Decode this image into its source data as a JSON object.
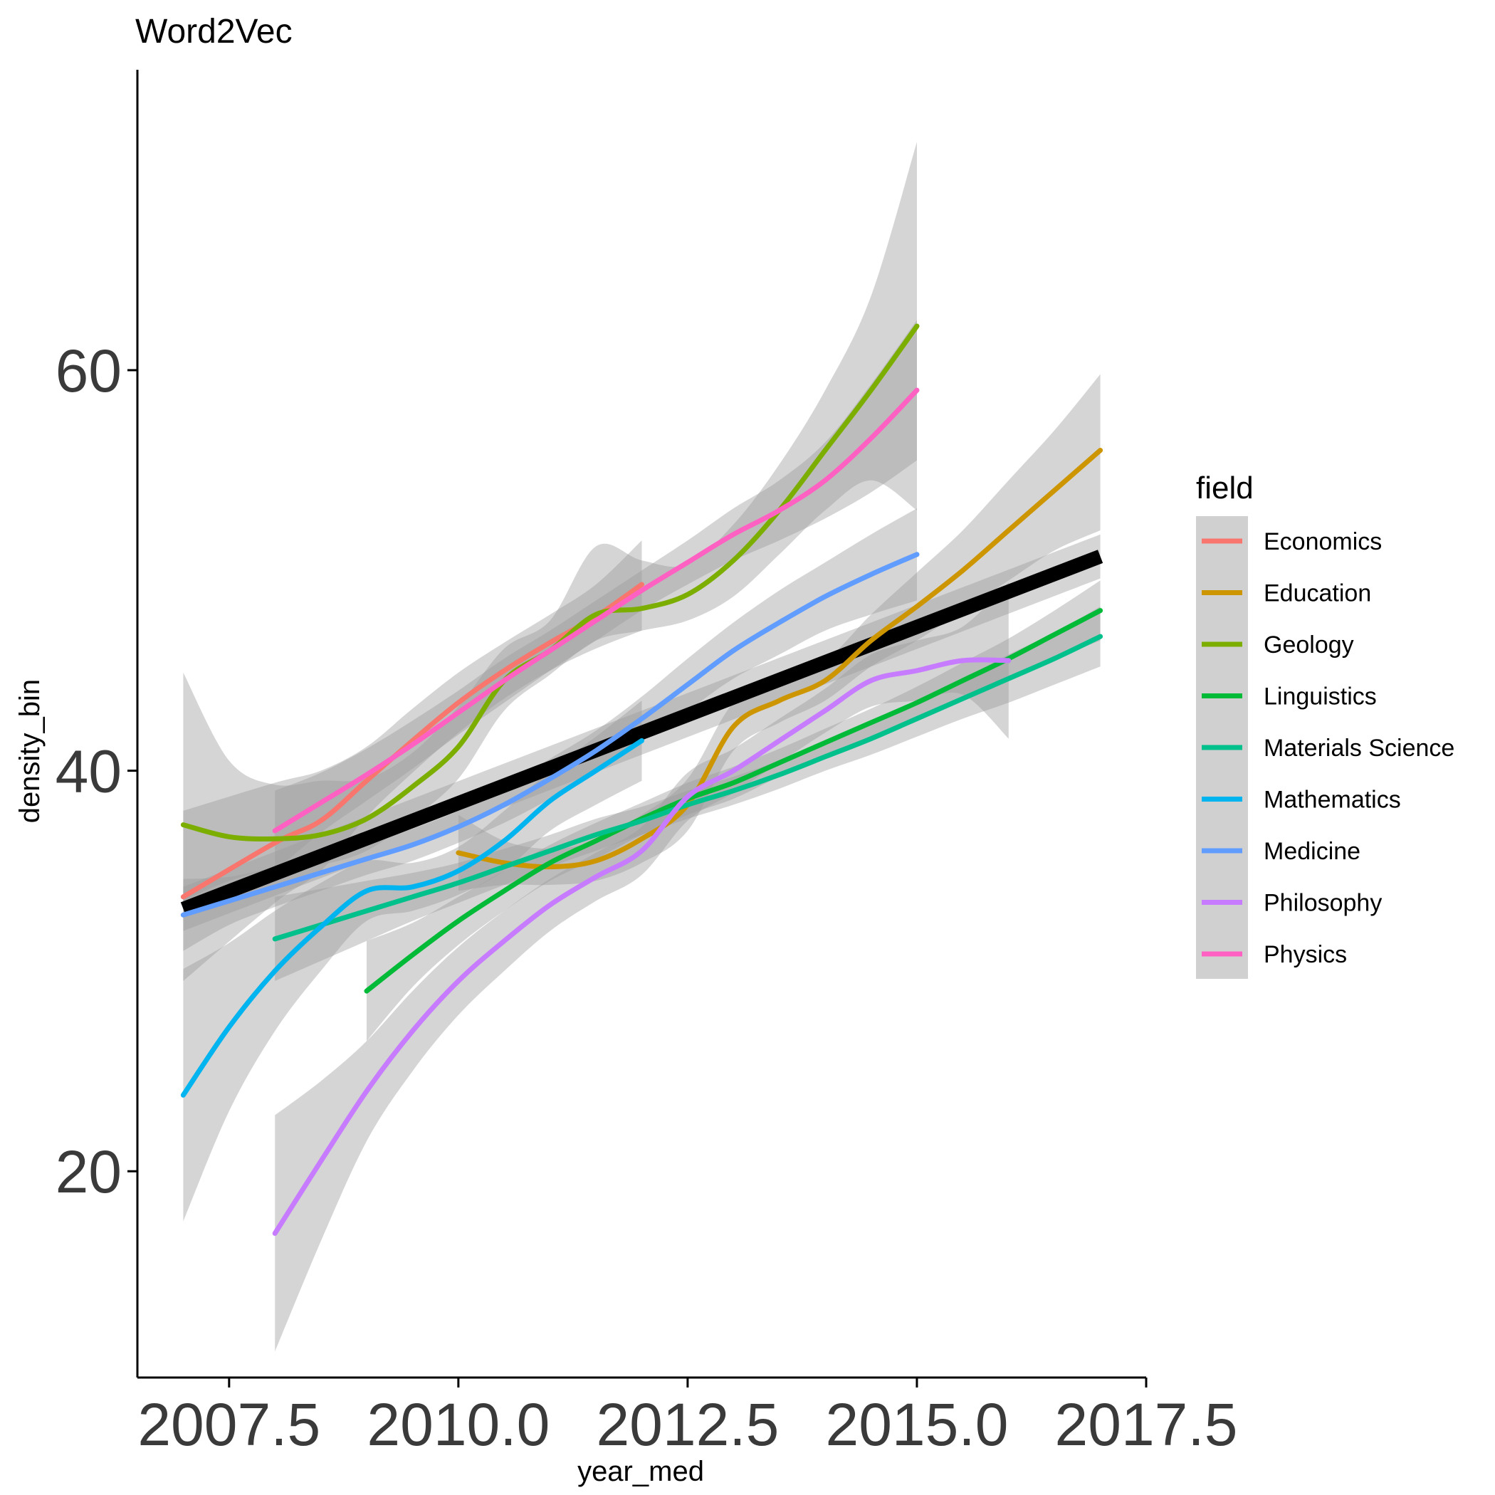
{
  "chart_data": {
    "type": "line",
    "title": "Word2Vec",
    "xlabel": "year_med",
    "ylabel": "density_bin",
    "xlim": [
      2006.5,
      2017.5
    ],
    "ylim": [
      9.7,
      75
    ],
    "x_ticks": [
      "2007.5",
      "2010.0",
      "2012.5",
      "2015.0",
      "2017.5"
    ],
    "x_tick_values": [
      2007.5,
      2010.0,
      2012.5,
      2015.0,
      2017.5
    ],
    "y_ticks": [
      "20",
      "40",
      "60"
    ],
    "y_tick_values": [
      20,
      40,
      60
    ],
    "grid": false,
    "legend": {
      "title": "field",
      "position": "right"
    },
    "series": [
      {
        "name": "Economics",
        "color": "#F8766D",
        "x": [
          2007,
          2008,
          2008.5,
          2009,
          2009.5,
          2010,
          2010.5,
          2011,
          2011.5,
          2012
        ],
        "y": [
          33.7,
          36.4,
          37.5,
          39.5,
          41.5,
          43.4,
          45.0,
          46.4,
          47.7,
          49.3
        ],
        "ci": [
          [
            29.5,
            38.0
          ],
          [
            33.4,
            39.4
          ],
          [
            35.0,
            40.0
          ],
          [
            37.7,
            41.2
          ],
          [
            39.9,
            43.1
          ],
          [
            41.9,
            44.9
          ],
          [
            43.6,
            46.4
          ],
          [
            45.0,
            47.8
          ],
          [
            46.1,
            49.3
          ],
          [
            47.0,
            51.5
          ]
        ]
      },
      {
        "name": "Education",
        "color": "#CD9600",
        "x": [
          2010,
          2010.5,
          2011,
          2011.5,
          2012,
          2012.5,
          2013,
          2013.5,
          2014,
          2014.5,
          2015,
          2015.5,
          2016,
          2016.5,
          2017
        ],
        "y": [
          35.9,
          35.4,
          35.2,
          35.5,
          36.6,
          38.3,
          42.2,
          43.5,
          44.5,
          46.5,
          48.2,
          50.0,
          52.0,
          54.0,
          56.0
        ],
        "ci": [
          [
            34.0,
            37.8
          ],
          [
            34.3,
            36.5
          ],
          [
            34.3,
            36.1
          ],
          [
            34.5,
            36.5
          ],
          [
            35.4,
            37.8
          ],
          [
            37.0,
            39.6
          ],
          [
            41.0,
            43.4
          ],
          [
            42.4,
            44.6
          ],
          [
            43.5,
            45.5
          ],
          [
            45.2,
            47.8
          ],
          [
            46.5,
            49.9
          ],
          [
            48.0,
            52.0
          ],
          [
            49.5,
            54.5
          ],
          [
            51.0,
            57.0
          ],
          [
            52.0,
            59.8
          ]
        ]
      },
      {
        "name": "Geology",
        "color": "#7CAE00",
        "x": [
          2007,
          2007.5,
          2008,
          2008.5,
          2009,
          2009.5,
          2010,
          2010.5,
          2011,
          2011.5,
          2012,
          2012.5,
          2013,
          2013.5,
          2014,
          2014.5,
          2015
        ],
        "y": [
          37.3,
          36.7,
          36.6,
          36.8,
          37.6,
          39.2,
          41.2,
          44.5,
          46.0,
          47.8,
          48.1,
          48.8,
          50.5,
          53.0,
          56.0,
          59.0,
          62.2
        ],
        "ci": [
          [
            33.5,
            44.9
          ],
          [
            34.5,
            40.5
          ],
          [
            35.1,
            39.3
          ],
          [
            35.3,
            39.5
          ],
          [
            36.0,
            39.6
          ],
          [
            37.6,
            40.9
          ],
          [
            39.6,
            43.2
          ],
          [
            43.0,
            46.1
          ],
          [
            44.8,
            47.5
          ],
          [
            46.5,
            51.2
          ],
          [
            47.0,
            50.5
          ],
          [
            47.5,
            50.3
          ],
          [
            48.7,
            52.3
          ],
          [
            50.8,
            55.3
          ],
          [
            53.0,
            59.0
          ],
          [
            54.5,
            63.7
          ],
          [
            53.0,
            71.4
          ]
        ]
      },
      {
        "name": "Linguistics",
        "color": "#00BA38",
        "x": [
          2009,
          2009.5,
          2010,
          2010.5,
          2011,
          2011.5,
          2012,
          2012.5,
          2013,
          2013.5,
          2014,
          2014.5,
          2015,
          2015.5,
          2016,
          2016.5,
          2017
        ],
        "y": [
          29.0,
          30.8,
          32.5,
          34.0,
          35.4,
          36.5,
          37.6,
          38.6,
          39.4,
          40.4,
          41.4,
          42.4,
          43.4,
          44.5,
          45.6,
          46.8,
          48.0
        ],
        "ci": [
          [
            26.5,
            31.5
          ],
          [
            29.2,
            32.4
          ],
          [
            31.3,
            33.7
          ],
          [
            33.0,
            35.0
          ],
          [
            34.5,
            36.3
          ],
          [
            35.6,
            37.4
          ],
          [
            36.8,
            38.4
          ],
          [
            37.8,
            39.4
          ],
          [
            38.6,
            40.2
          ],
          [
            39.7,
            41.1
          ],
          [
            40.7,
            42.1
          ],
          [
            41.7,
            43.1
          ],
          [
            42.6,
            44.2
          ],
          [
            43.6,
            45.4
          ],
          [
            44.6,
            46.6
          ],
          [
            45.6,
            48.0
          ],
          [
            46.5,
            49.5
          ]
        ]
      },
      {
        "name": "Materials Science",
        "color": "#00C08B",
        "x": [
          2008,
          2008.5,
          2009,
          2009.5,
          2010,
          2010.5,
          2011,
          2011.5,
          2012,
          2012.5,
          2013,
          2013.5,
          2014,
          2014.5,
          2015,
          2015.5,
          2016,
          2016.5,
          2017
        ],
        "y": [
          31.6,
          32.3,
          33.0,
          33.7,
          34.4,
          35.2,
          36.0,
          36.8,
          37.5,
          38.3,
          39.0,
          39.8,
          40.7,
          41.6,
          42.6,
          43.6,
          44.6,
          45.6,
          46.7
        ],
        "ci": [
          [
            29.5,
            33.7
          ],
          [
            30.5,
            34.1
          ],
          [
            31.5,
            34.5
          ],
          [
            32.5,
            34.9
          ],
          [
            33.4,
            35.4
          ],
          [
            34.3,
            36.1
          ],
          [
            35.2,
            36.8
          ],
          [
            36.0,
            37.6
          ],
          [
            36.8,
            38.2
          ],
          [
            37.6,
            39.0
          ],
          [
            38.3,
            39.7
          ],
          [
            39.1,
            40.5
          ],
          [
            40.0,
            41.4
          ],
          [
            40.8,
            42.4
          ],
          [
            41.7,
            43.5
          ],
          [
            42.6,
            44.6
          ],
          [
            43.4,
            45.8
          ],
          [
            44.3,
            46.9
          ],
          [
            45.2,
            48.2
          ]
        ]
      },
      {
        "name": "Mathematics",
        "color": "#00B4EF",
        "x": [
          2007,
          2007.5,
          2008,
          2008.5,
          2009,
          2009.5,
          2010,
          2010.5,
          2011,
          2011.5,
          2012
        ],
        "y": [
          23.8,
          27.2,
          30.0,
          32.2,
          34.0,
          34.2,
          35.0,
          36.5,
          38.5,
          40.0,
          41.5
        ],
        "ci": [
          [
            17.5,
            30.1
          ],
          [
            23.0,
            31.4
          ],
          [
            27.0,
            33.0
          ],
          [
            30.0,
            34.4
          ],
          [
            32.5,
            35.5
          ],
          [
            33.0,
            35.4
          ],
          [
            33.8,
            36.2
          ],
          [
            35.0,
            38.0
          ],
          [
            37.0,
            40.0
          ],
          [
            38.3,
            41.7
          ],
          [
            39.5,
            43.5
          ]
        ]
      },
      {
        "name": "Medicine",
        "color": "#619CFF",
        "x": [
          2007,
          2007.5,
          2008,
          2008.5,
          2009,
          2009.5,
          2010,
          2010.5,
          2011,
          2011.5,
          2012,
          2012.5,
          2013,
          2013.5,
          2014,
          2014.5,
          2015
        ],
        "y": [
          32.8,
          33.5,
          34.2,
          34.9,
          35.6,
          36.3,
          37.2,
          38.3,
          39.6,
          41.0,
          42.6,
          44.3,
          46.0,
          47.4,
          48.7,
          49.8,
          50.8
        ],
        "ci": [
          [
            31.0,
            34.6
          ],
          [
            32.3,
            34.7
          ],
          [
            33.2,
            35.2
          ],
          [
            34.0,
            35.8
          ],
          [
            34.8,
            36.4
          ],
          [
            35.5,
            37.1
          ],
          [
            36.4,
            38.0
          ],
          [
            37.4,
            39.2
          ],
          [
            38.6,
            40.6
          ],
          [
            40.0,
            42.0
          ],
          [
            41.5,
            43.7
          ],
          [
            43.0,
            45.6
          ],
          [
            44.6,
            47.4
          ],
          [
            45.8,
            49.0
          ],
          [
            47.0,
            50.4
          ],
          [
            47.8,
            51.8
          ],
          [
            48.5,
            53.1
          ]
        ]
      },
      {
        "name": "Philosophy",
        "color": "#C77CFF",
        "x": [
          2008,
          2008.5,
          2009,
          2009.5,
          2010,
          2010.5,
          2011,
          2011.5,
          2012,
          2012.5,
          2013,
          2013.5,
          2014,
          2014.5,
          2015,
          2015.5,
          2016
        ],
        "y": [
          16.9,
          20.5,
          24.0,
          27.0,
          29.5,
          31.5,
          33.3,
          34.7,
          36.0,
          38.7,
          40.0,
          41.5,
          43.0,
          44.5,
          45.0,
          45.5,
          45.5
        ],
        "ci": [
          [
            11.0,
            22.8
          ],
          [
            16.5,
            24.5
          ],
          [
            21.5,
            26.5
          ],
          [
            25.0,
            29.0
          ],
          [
            27.8,
            31.2
          ],
          [
            30.0,
            33.0
          ],
          [
            32.0,
            34.6
          ],
          [
            33.5,
            35.9
          ],
          [
            34.8,
            37.2
          ],
          [
            37.5,
            39.9
          ],
          [
            38.9,
            41.1
          ],
          [
            40.4,
            42.6
          ],
          [
            41.9,
            44.1
          ],
          [
            43.2,
            45.8
          ],
          [
            43.5,
            46.5
          ],
          [
            43.8,
            47.2
          ],
          [
            41.6,
            49.4
          ]
        ]
      },
      {
        "name": "Physics",
        "color": "#FF61C3",
        "x": [
          2008,
          2008.5,
          2009,
          2009.5,
          2010,
          2010.5,
          2011,
          2011.5,
          2012,
          2012.5,
          2013,
          2013.5,
          2014,
          2014.5,
          2015
        ],
        "y": [
          37.0,
          38.4,
          39.8,
          41.3,
          42.9,
          44.5,
          46.0,
          47.5,
          49.0,
          50.4,
          51.8,
          53.0,
          54.5,
          56.6,
          59.0
        ],
        "ci": [
          [
            35.0,
            39.0
          ],
          [
            36.9,
            39.9
          ],
          [
            38.5,
            41.1
          ],
          [
            40.1,
            42.5
          ],
          [
            41.8,
            44.0
          ],
          [
            43.4,
            45.6
          ],
          [
            45.0,
            47.0
          ],
          [
            46.5,
            48.5
          ],
          [
            48.0,
            50.0
          ],
          [
            49.3,
            51.5
          ],
          [
            50.5,
            53.1
          ],
          [
            51.5,
            54.5
          ],
          [
            52.6,
            56.4
          ],
          [
            53.9,
            59.3
          ],
          [
            55.5,
            62.5
          ]
        ]
      }
    ],
    "overall_fit": {
      "color": "#000000",
      "x": [
        2007,
        2017
      ],
      "y": [
        33.1,
        50.7
      ],
      "ci": [
        [
          32.0,
          34.2
        ],
        [
          49.6,
          51.8
        ]
      ]
    }
  }
}
